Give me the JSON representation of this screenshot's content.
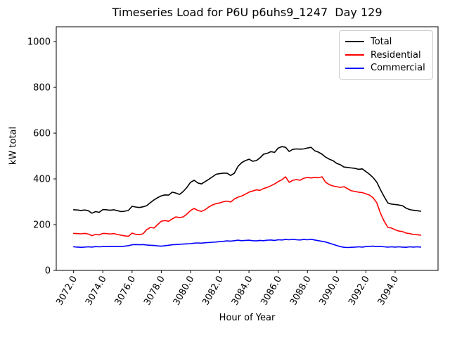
{
  "chart": {
    "title": "Timeseries Load for P6U p6uhs9_1247  Day 129",
    "xlabel": "Hour of Year",
    "ylabel": "kW total"
  },
  "chart_data": {
    "type": "line",
    "title": "Timeseries Load for P6U p6uhs9_1247  Day 129",
    "xlabel": "Hour of Year",
    "ylabel": "kW total",
    "xlim": [
      3070.8125,
      3096.9375
    ],
    "ylim": [
      0,
      1065
    ],
    "grid": false,
    "legend_position": "upper right",
    "xticks": [
      3072,
      3074,
      3076,
      3078,
      3080,
      3082,
      3084,
      3086,
      3088,
      3090,
      3092,
      3094
    ],
    "xtick_labels": [
      "3072.0",
      "3074.0",
      "3076.0",
      "3078.0",
      "3080.0",
      "3082.0",
      "3084.0",
      "3086.0",
      "3088.0",
      "3090.0",
      "3092.0",
      "3094.0"
    ],
    "yticks": [
      0,
      200,
      400,
      600,
      800,
      1000
    ],
    "ytick_labels": [
      "0",
      "200",
      "400",
      "600",
      "800",
      "1000"
    ],
    "x": [
      3072.0,
      3072.25,
      3072.5,
      3072.75,
      3073.0,
      3073.25,
      3073.5,
      3073.75,
      3074.0,
      3074.25,
      3074.5,
      3074.75,
      3075.0,
      3075.25,
      3075.5,
      3075.75,
      3076.0,
      3076.25,
      3076.5,
      3076.75,
      3077.0,
      3077.25,
      3077.5,
      3077.75,
      3078.0,
      3078.25,
      3078.5,
      3078.75,
      3079.0,
      3079.25,
      3079.5,
      3079.75,
      3080.0,
      3080.25,
      3080.5,
      3080.75,
      3081.0,
      3081.25,
      3081.5,
      3081.75,
      3082.0,
      3082.25,
      3082.5,
      3082.75,
      3083.0,
      3083.25,
      3083.5,
      3083.75,
      3084.0,
      3084.25,
      3084.5,
      3084.75,
      3085.0,
      3085.25,
      3085.5,
      3085.75,
      3086.0,
      3086.25,
      3086.5,
      3086.75,
      3087.0,
      3087.25,
      3087.5,
      3087.75,
      3088.0,
      3088.25,
      3088.5,
      3088.75,
      3089.0,
      3089.25,
      3089.5,
      3089.75,
      3090.0,
      3090.25,
      3090.5,
      3090.75,
      3091.0,
      3091.25,
      3091.5,
      3091.75,
      3092.0,
      3092.25,
      3092.5,
      3092.75,
      3093.0,
      3093.25,
      3093.5,
      3093.75,
      3094.0,
      3094.25,
      3094.5,
      3094.75,
      3095.0,
      3095.25,
      3095.5,
      3095.75
    ],
    "series": [
      {
        "name": "Total",
        "color": "#000000",
        "data_name": "total-line",
        "values": [
          265,
          264,
          262,
          264,
          261,
          250,
          257,
          254,
          266,
          265,
          263,
          265,
          261,
          257,
          259,
          262,
          280,
          277,
          275,
          278,
          283,
          296,
          308,
          318,
          326,
          330,
          329,
          342,
          338,
          332,
          345,
          363,
          385,
          394,
          382,
          378,
          388,
          398,
          409,
          420,
          423,
          425,
          425,
          415,
          425,
          455,
          471,
          480,
          486,
          477,
          480,
          492,
          508,
          512,
          519,
          516,
          535,
          541,
          538,
          520,
          529,
          531,
          530,
          531,
          535,
          538,
          523,
          517,
          508,
          495,
          486,
          480,
          468,
          462,
          452,
          450,
          448,
          446,
          442,
          444,
          432,
          420,
          405,
          385,
          352,
          322,
          295,
          290,
          288,
          286,
          283,
          272,
          266,
          263,
          261,
          259
        ]
      },
      {
        "name": "Residential",
        "color": "#ff0000",
        "data_name": "residential-line",
        "values": [
          162,
          161,
          160,
          162,
          159,
          152,
          157,
          155,
          162,
          161,
          159,
          161,
          157,
          154,
          151,
          149,
          163,
          158,
          156,
          160,
          178,
          188,
          185,
          200,
          215,
          218,
          215,
          225,
          234,
          231,
          234,
          246,
          262,
          271,
          262,
          258,
          265,
          277,
          286,
          292,
          295,
          300,
          303,
          299,
          312,
          320,
          325,
          333,
          342,
          347,
          352,
          350,
          358,
          363,
          370,
          378,
          388,
          396,
          409,
          385,
          394,
          397,
          394,
          403,
          406,
          404,
          406,
          405,
          409,
          385,
          375,
          369,
          366,
          363,
          366,
          357,
          348,
          345,
          342,
          340,
          335,
          329,
          317,
          295,
          249,
          215,
          188,
          185,
          178,
          172,
          170,
          163,
          161,
          157,
          156,
          154
        ]
      },
      {
        "name": "Commercial",
        "color": "#0000ff",
        "data_name": "commercial-line",
        "values": [
          103,
          102,
          101,
          102,
          103,
          102,
          104,
          103,
          104,
          104,
          105,
          104,
          105,
          104,
          106,
          108,
          112,
          113,
          112,
          113,
          111,
          110,
          109,
          107,
          106,
          108,
          110,
          112,
          113,
          114,
          115,
          116,
          117,
          119,
          120,
          119,
          121,
          122,
          123,
          124,
          126,
          127,
          129,
          128,
          130,
          132,
          130,
          131,
          132,
          130,
          129,
          131,
          130,
          132,
          133,
          131,
          134,
          133,
          135,
          134,
          136,
          134,
          133,
          135,
          134,
          136,
          133,
          130,
          127,
          124,
          119,
          114,
          109,
          104,
          101,
          100,
          101,
          102,
          103,
          102,
          104,
          105,
          106,
          104,
          105,
          103,
          102,
          103,
          102,
          103,
          102,
          101,
          103,
          102,
          103,
          102
        ]
      }
    ]
  }
}
